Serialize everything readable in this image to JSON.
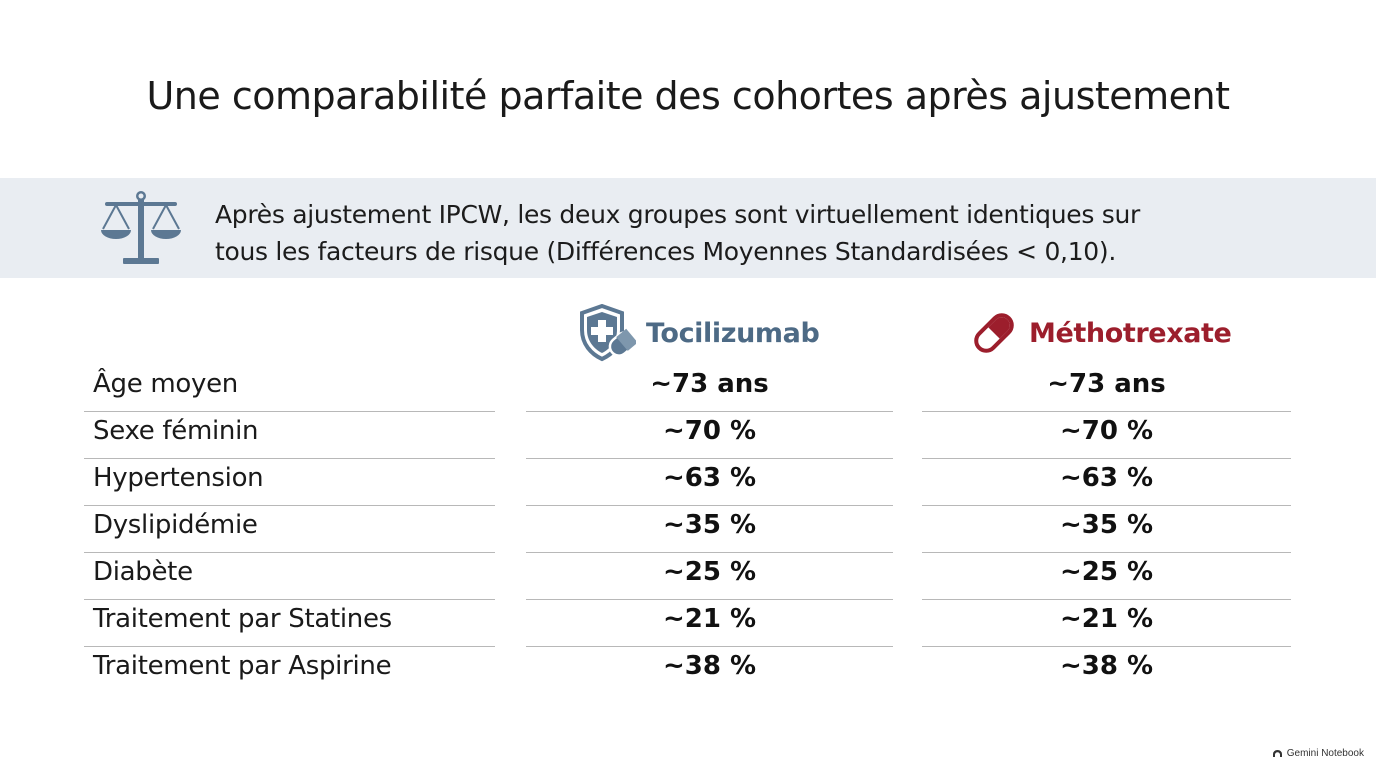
{
  "title": "Une comparabilité parfaite des cohortes après ajustement",
  "banner": {
    "icon": "balance-scale-icon",
    "line1": "Après ajustement IPCW, les deux groupes sont virtuellement identiques sur",
    "line2": "tous les facteurs de risque (Différences Moyennes Standardisées < 0,10)."
  },
  "columns": {
    "tocilizumab": {
      "label": "Tocilizumab",
      "icon": "shield-pill-icon",
      "color": "#4d6a85"
    },
    "methotrexate": {
      "label": "Méthotrexate",
      "icon": "capsule-icon",
      "color": "#9c1e2c"
    }
  },
  "rows": [
    {
      "label": "Âge moyen",
      "tocilizumab": "~73 ans",
      "methotrexate": "~73 ans"
    },
    {
      "label": "Sexe féminin",
      "tocilizumab": "~70 %",
      "methotrexate": "~70 %"
    },
    {
      "label": "Hypertension",
      "tocilizumab": "~63 %",
      "methotrexate": "~63 %"
    },
    {
      "label": "Dyslipidémie",
      "tocilizumab": "~35 %",
      "methotrexate": "~35 %"
    },
    {
      "label": "Diabète",
      "tocilizumab": "~25 %",
      "methotrexate": "~25 %"
    },
    {
      "label": "Traitement par Statines",
      "tocilizumab": "~21 %",
      "methotrexate": "~21 %"
    },
    {
      "label": "Traitement par Aspirine",
      "tocilizumab": "~38 %",
      "methotrexate": "~38 %"
    }
  ],
  "footer": {
    "label": "Gemini Notebook",
    "icon": "notebook-logo-icon"
  }
}
